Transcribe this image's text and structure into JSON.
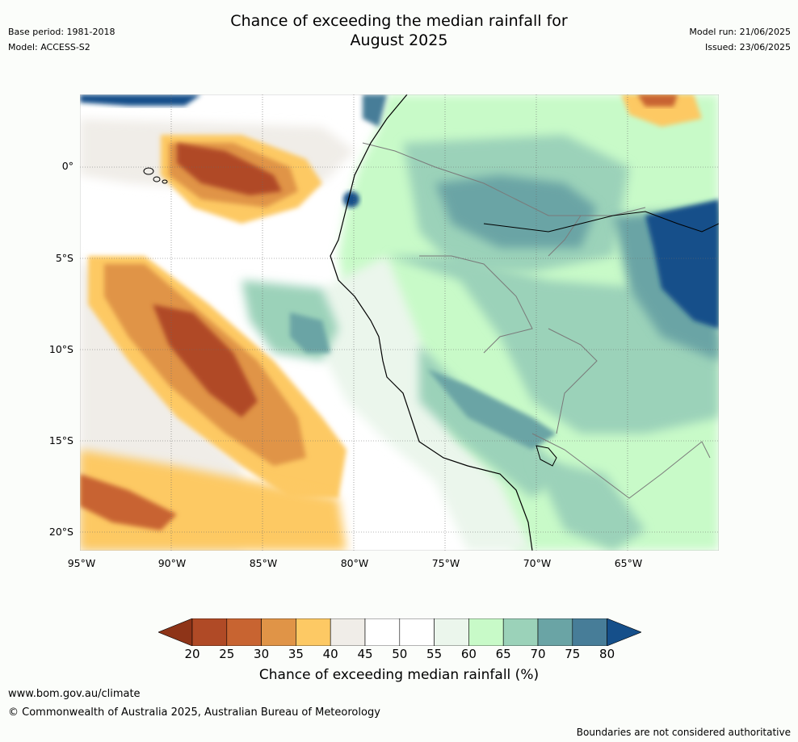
{
  "header": {
    "title_line1": "Chance of exceeding the median rainfall for",
    "title_line2": "August 2025",
    "base_period": "Base period: 1981-2018",
    "model": "Model: ACCESS-S2",
    "model_run": "Model run: 21/06/2025",
    "issued": "Issued: 23/06/2025"
  },
  "map": {
    "latitude_labels": [
      "0°",
      "5°S",
      "10°S",
      "15°S",
      "20°S"
    ],
    "longitude_labels": [
      "95°W",
      "90°W",
      "85°W",
      "80°W",
      "75°W",
      "70°W",
      "65°W"
    ]
  },
  "colorbar": {
    "ticks": [
      "20",
      "25",
      "30",
      "35",
      "40",
      "45",
      "50",
      "55",
      "60",
      "65",
      "70",
      "75",
      "80"
    ],
    "colors": [
      "#8e3418",
      "#b04a26",
      "#c86431",
      "#e09447",
      "#fdc964",
      "#f0ede8",
      "#ffffff",
      "#ffffff",
      "#ebf6ec",
      "#c8fac8",
      "#9bd2b9",
      "#6aa4a5",
      "#477d98",
      "#154f8a"
    ],
    "title": "Chance of exceeding median rainfall (%)"
  },
  "footer": {
    "website": "www.bom.gov.au/climate",
    "copyright": "© Commonwealth of Australia 2025, Australian Bureau of Meteorology",
    "disclaimer": "Boundaries are not considered authoritative"
  }
}
